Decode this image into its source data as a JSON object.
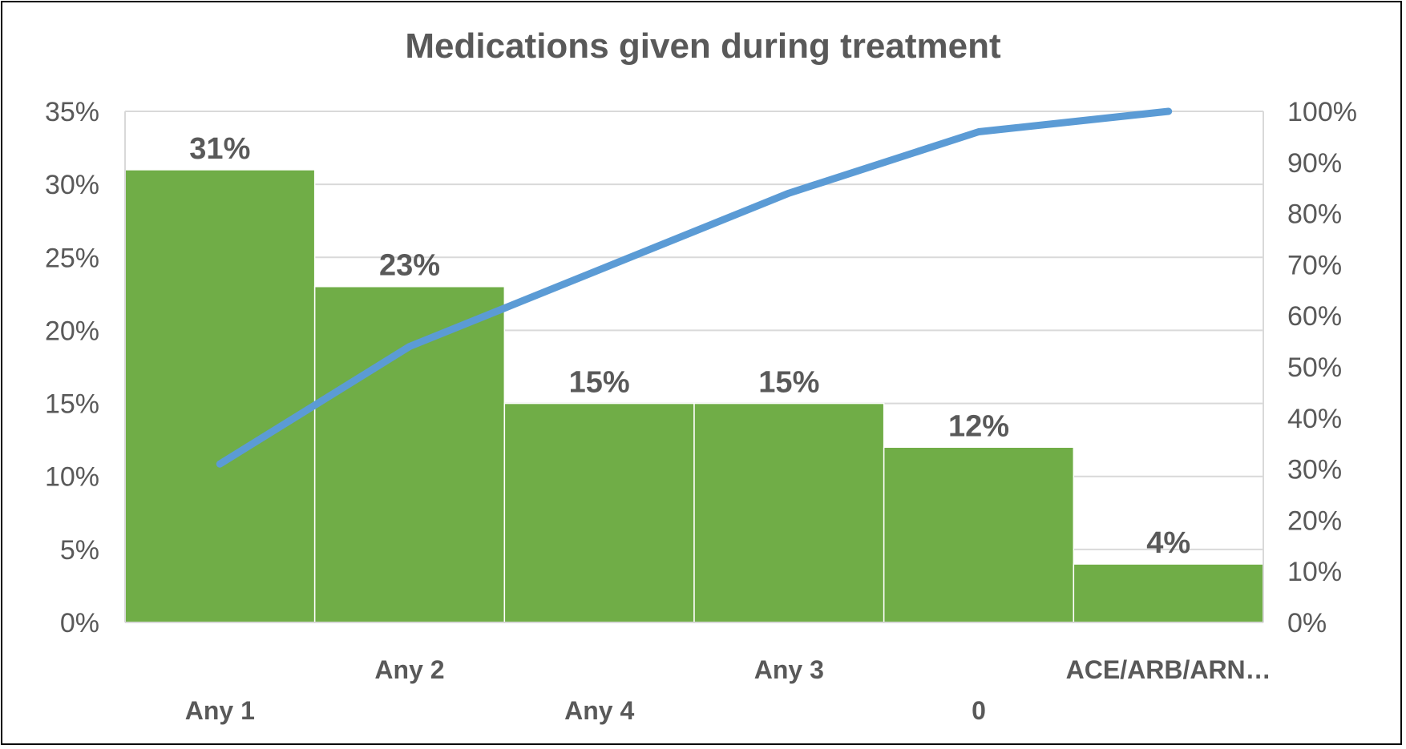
{
  "chart_data": {
    "type": "bar",
    "title": "Medications given during treatment",
    "categories": [
      "Any 1",
      "Any 2",
      "Any 4",
      "Any 3",
      "0",
      "ACE/ARB/ARN…"
    ],
    "series": [
      {
        "type": "bar",
        "axis": "left",
        "values": [
          31,
          23,
          15,
          15,
          12,
          4
        ],
        "data_labels": [
          "31%",
          "23%",
          "15%",
          "15%",
          "12%",
          "4%"
        ],
        "color": "#70ad47"
      },
      {
        "type": "line",
        "axis": "right",
        "values": [
          31,
          54,
          69,
          84,
          96,
          100
        ],
        "color": "#5b9bd5"
      }
    ],
    "ylim": [
      0,
      35
    ],
    "y_ticks": [
      0,
      5,
      10,
      15,
      20,
      25,
      30,
      35
    ],
    "y_tick_labels": [
      "0%",
      "5%",
      "10%",
      "15%",
      "20%",
      "25%",
      "30%",
      "35%"
    ],
    "y2lim": [
      0,
      100
    ],
    "y2_ticks": [
      0,
      10,
      20,
      30,
      40,
      50,
      60,
      70,
      80,
      90,
      100
    ],
    "y2_tick_labels": [
      "0%",
      "10%",
      "20%",
      "30%",
      "40%",
      "50%",
      "60%",
      "70%",
      "80%",
      "90%",
      "100%"
    ],
    "grid": true,
    "legend": "none",
    "colors": {
      "bar": "#70ad47",
      "line": "#5b9bd5",
      "grid": "#d9d9d9",
      "text": "#595959"
    }
  }
}
